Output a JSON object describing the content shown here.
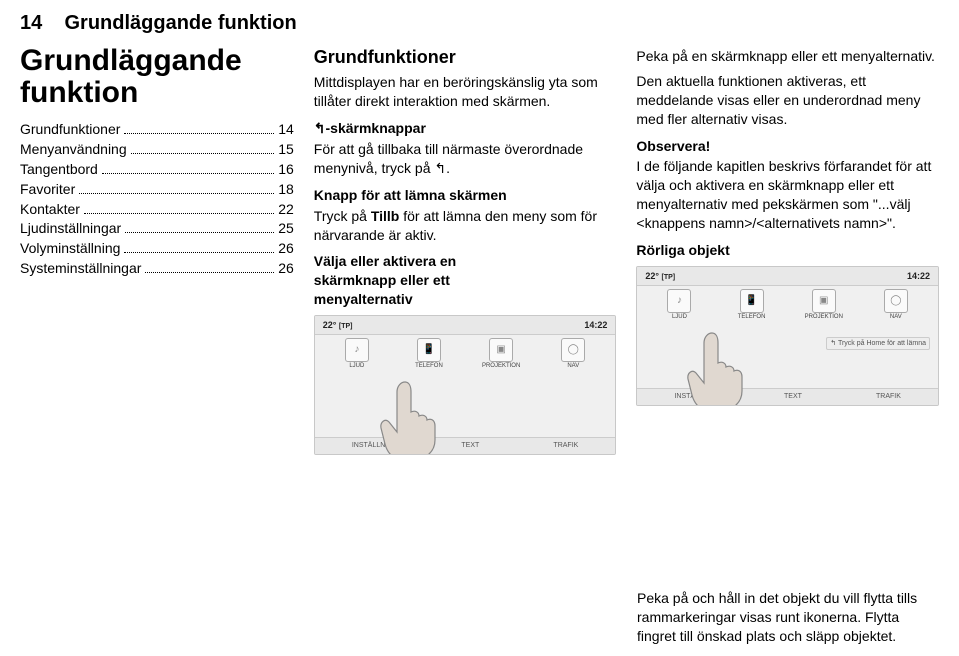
{
  "page_number": "14",
  "header_title": "Grundläggande funktion",
  "col1": {
    "big_title_line1": "Grundläggande",
    "big_title_line2": "funktion",
    "toc": [
      {
        "label": "Grundfunktioner",
        "page": "14"
      },
      {
        "label": "Menyanvändning",
        "page": "15"
      },
      {
        "label": "Tangentbord",
        "page": "16"
      },
      {
        "label": "Favoriter",
        "page": "18"
      },
      {
        "label": "Kontakter",
        "page": "22"
      },
      {
        "label": "Ljudinställningar",
        "page": "25"
      },
      {
        "label": "Volyminställning",
        "page": "26"
      },
      {
        "label": "Systeminställningar",
        "page": "26"
      }
    ]
  },
  "col2": {
    "h1": "Grundfunktioner",
    "p1": "Mittdisplayen har en beröringskänslig yta som tillåter direkt interaktion med skärmen.",
    "h2": "↰-skärmknappar",
    "p2": "För att gå tillbaka till närmaste överordnade menynivå, tryck på ↰.",
    "h3": "Knapp för att lämna skärmen",
    "p3a": "Tryck på ",
    "p3b_bold": "Tillb",
    "p3c": " för att lämna den meny som för närvarande är aktiv.",
    "h4_l1": "Välja eller aktivera en",
    "h4_l2": "skärmknapp eller ett",
    "h4_l3": "menyalternativ"
  },
  "col3": {
    "p1": "Peka på en skärmknapp eller ett menyalternativ.",
    "p2": "Den aktuella funktionen aktiveras, ett meddelande visas eller en underordnad meny med fler alternativ visas.",
    "h_obs": "Observera!",
    "p3": "I de följande kapitlen beskrivs förfarandet för att välja och aktivera en skärmknapp eller ett menyalternativ med pekskärmen som \"...välj <knappens namn>/<alternativets namn>\".",
    "h_rorliga": "Rörliga objekt"
  },
  "footer": {
    "text": "Peka på och håll in det objekt du vill flytta tills rammarkeringar visas runt ikonerna. Flytta fingret till önskad plats och släpp objektet."
  },
  "screenshot": {
    "temp": "22°",
    "tp": "[TP]",
    "time": "14:22",
    "icons_top": [
      "LJUD",
      "TELEFON",
      "PROJEKTION",
      "NAV"
    ],
    "icons_glyph": [
      "♪",
      "📱",
      "▣",
      "◯"
    ],
    "bottom_row": [
      "INSTÄLLN.",
      "TEXT",
      "TRAFIK"
    ],
    "hint": "Tryck på Home för att lämna",
    "colors": {
      "bg": "#f0f0f0",
      "border": "#c8c8c8",
      "bar": "#e8e8e8",
      "finger_fill": "#e0d8d0",
      "finger_stroke": "#888888"
    }
  }
}
